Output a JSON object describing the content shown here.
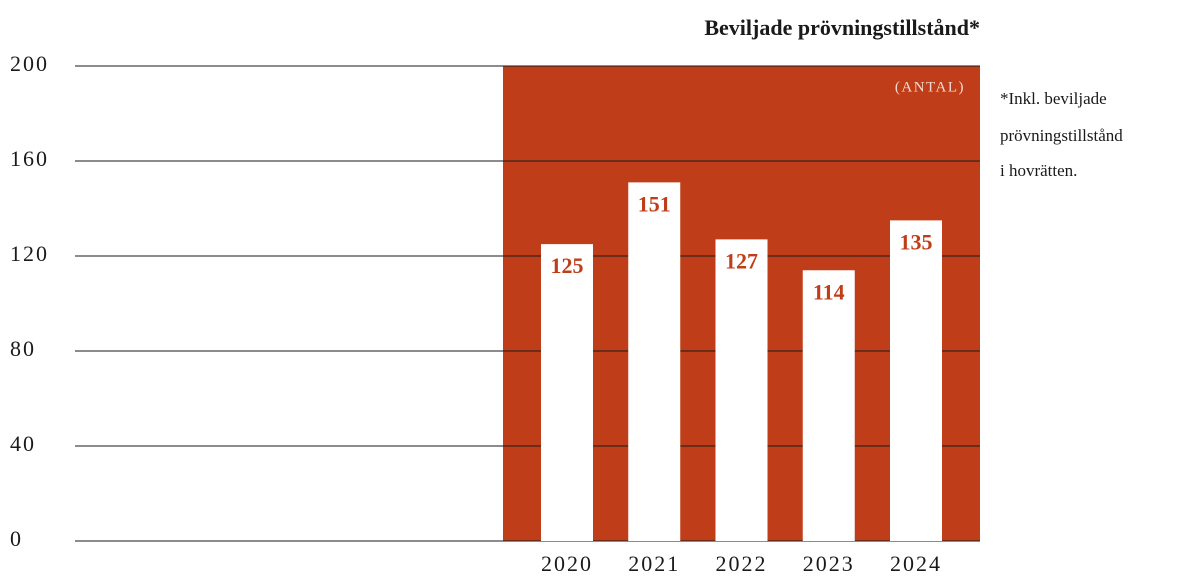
{
  "chart_data": {
    "type": "bar",
    "title": "Beviljade prövningstillstånd*",
    "unit_label": "(ANTAL)",
    "note": [
      "*Inkl. beviljade",
      "prövningstillstånd",
      "i hovrätten."
    ],
    "categories": [
      "2020",
      "2021",
      "2022",
      "2023",
      "2024"
    ],
    "values": [
      125,
      151,
      127,
      114,
      135
    ],
    "color": "#ffffff",
    "panel_color": "#c03d19",
    "ylim": [
      0,
      200
    ],
    "yticks": [
      0,
      40,
      80,
      120,
      160,
      200
    ],
    "grid": true
  }
}
